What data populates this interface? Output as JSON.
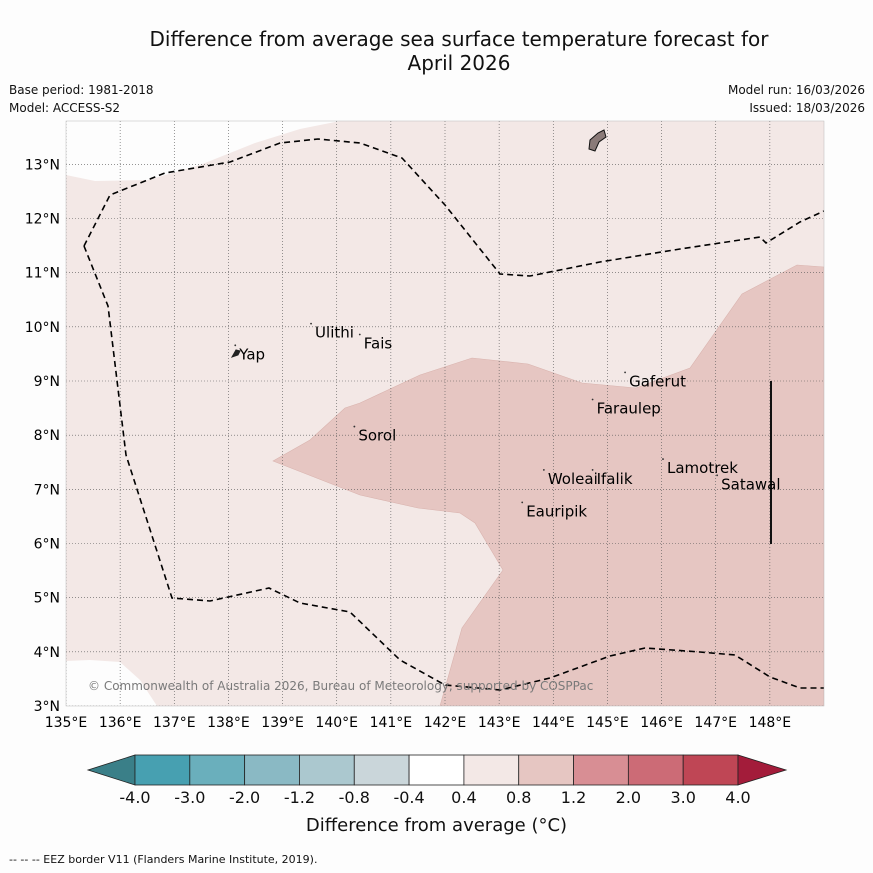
{
  "title_line1": "Difference from average sea surface temperature forecast for",
  "title_line2": "April 2026",
  "base_period": "Base period: 1981-2018",
  "model": "Model: ACCESS-S2",
  "model_run": "Model run: 16/03/2026",
  "issued": "Issued: 18/03/2026",
  "copyright": "© Commonwealth of Australia 2026, Bureau of Meteorology, supported by COSPPac",
  "map": {
    "lon_range": [
      135,
      149
    ],
    "lat_range": [
      3,
      13.8
    ],
    "lon_ticks": [
      {
        "value": 135,
        "label": "135°E"
      },
      {
        "value": 136,
        "label": "136°E"
      },
      {
        "value": 137,
        "label": "137°E"
      },
      {
        "value": 138,
        "label": "138°E"
      },
      {
        "value": 139,
        "label": "139°E"
      },
      {
        "value": 140,
        "label": "140°E"
      },
      {
        "value": 141,
        "label": "141°E"
      },
      {
        "value": 142,
        "label": "142°E"
      },
      {
        "value": 143,
        "label": "143°E"
      },
      {
        "value": 144,
        "label": "144°E"
      },
      {
        "value": 145,
        "label": "145°E"
      },
      {
        "value": 146,
        "label": "146°E"
      },
      {
        "value": 147,
        "label": "147°E"
      },
      {
        "value": 148,
        "label": "148°E"
      }
    ],
    "lat_ticks": [
      {
        "value": 3,
        "label": "3°N"
      },
      {
        "value": 4,
        "label": "4°N"
      },
      {
        "value": 5,
        "label": "5°N"
      },
      {
        "value": 6,
        "label": "6°N"
      },
      {
        "value": 7,
        "label": "7°N"
      },
      {
        "value": 8,
        "label": "8°N"
      },
      {
        "value": 9,
        "label": "9°N"
      },
      {
        "value": 10,
        "label": "10°N"
      },
      {
        "value": 11,
        "label": "11°N"
      },
      {
        "value": 12,
        "label": "12°N"
      },
      {
        "value": 13,
        "label": "13°N"
      }
    ],
    "places": [
      {
        "name": "Yap",
        "lon": 138.2,
        "lat": 9.4
      },
      {
        "name": "Ulithi",
        "lon": 139.6,
        "lat": 9.8
      },
      {
        "name": "Fais",
        "lon": 140.5,
        "lat": 9.6
      },
      {
        "name": "Sorol",
        "lon": 140.4,
        "lat": 7.9
      },
      {
        "name": "Gaferut",
        "lon": 145.4,
        "lat": 8.9
      },
      {
        "name": "Faraulep",
        "lon": 144.8,
        "lat": 8.4
      },
      {
        "name": "Woleai",
        "lon": 143.9,
        "lat": 7.1
      },
      {
        "name": "Ifalik",
        "lon": 144.8,
        "lat": 7.1
      },
      {
        "name": "Lamotrek",
        "lon": 146.1,
        "lat": 7.3
      },
      {
        "name": "Satawal",
        "lon": 147.1,
        "lat": 7.0
      },
      {
        "name": "Eauripik",
        "lon": 143.5,
        "lat": 6.5
      }
    ],
    "fill_low_color": "#f3e8e6",
    "fill_mid_color": "#e6c6c2"
  },
  "colorbar": {
    "title": "Difference from average (°C)",
    "labels": [
      "-4.0",
      "-3.0",
      "-2.0",
      "-1.2",
      "-0.8",
      "-0.4",
      "0.4",
      "0.8",
      "1.2",
      "2.0",
      "3.0",
      "4.0"
    ],
    "colors": [
      "#47a0b1",
      "#6aafbc",
      "#8ab9c4",
      "#abc8cf",
      "#cad6da",
      "#ffffff",
      "#f3e8e6",
      "#e6c6c2",
      "#d88e94",
      "#cc6b76",
      "#bf4655"
    ],
    "under_color": "#3a7f88",
    "over_color": "#a31c3a"
  },
  "footnote": "--  --  -- EEZ border V11 (Flanders Marine Institute, 2019)."
}
